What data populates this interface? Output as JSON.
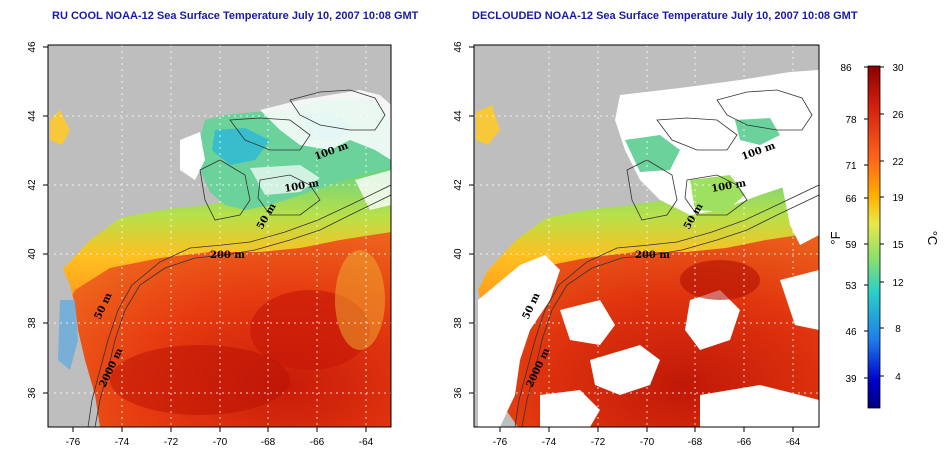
{
  "panels": {
    "left": {
      "title": "RU COOL NOAA-12 Sea Surface Temperature July 10, 2007 10:08 GMT"
    },
    "right": {
      "title": "DECLOUDED NOAA-12 Sea Surface Temperature July 10, 2007 10:08 GMT"
    }
  },
  "axes": {
    "lon_ticks": [
      "-76",
      "-74",
      "-72",
      "-70",
      "-68",
      "-66",
      "-64"
    ],
    "lat_ticks": [
      "46",
      "44",
      "42",
      "40",
      "38",
      "36"
    ]
  },
  "contour_labels": {
    "left": [
      "100 m",
      "100 m",
      "50 m",
      "200 m",
      "50 m",
      "2000 m"
    ],
    "right": [
      "100 m",
      "100 m",
      "50 m",
      "200 m",
      "50 m",
      "2000 m"
    ]
  },
  "colorbar": {
    "fahrenheit_ticks": [
      "86",
      "78",
      "71",
      "66",
      "59",
      "53",
      "46",
      "39"
    ],
    "celsius_ticks": [
      "30",
      "26",
      "22",
      "19",
      "15",
      "12",
      "8",
      "4"
    ],
    "fahrenheit_unit": "°F",
    "celsius_unit": "°C",
    "colors": [
      "#8b0000",
      "#d42010",
      "#ff6a1a",
      "#ffb000",
      "#e8e84a",
      "#8ee06a",
      "#2ad0c8",
      "#1e7ee8",
      "#0000cc",
      "#000080"
    ]
  },
  "colors": {
    "land": "#bebebe",
    "cloud": "#ffffff",
    "warm_water": "#e8320e",
    "title_text": "#1a1aa8"
  }
}
